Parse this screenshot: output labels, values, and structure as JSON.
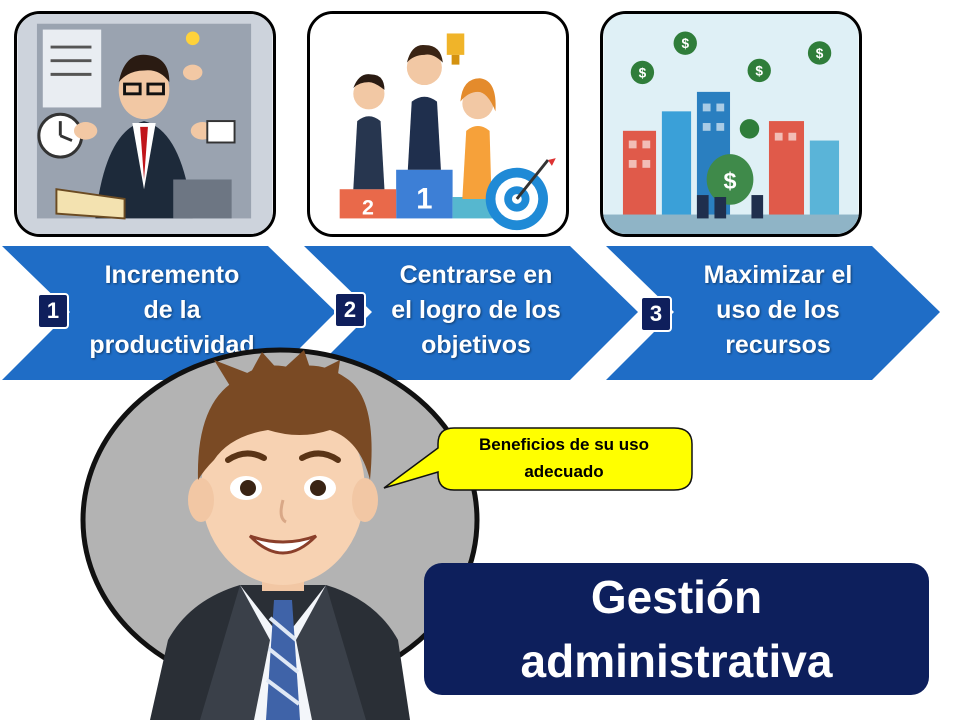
{
  "steps": [
    {
      "number": "1",
      "text": [
        "Incremento",
        "de la",
        "productividad"
      ],
      "image": "busy-businessman-multitasking"
    },
    {
      "number": "2",
      "text": [
        "Centrarse en",
        "el logro de los",
        "objetivos"
      ],
      "image": "winners-podium-with-target"
    },
    {
      "number": "3",
      "text": [
        "Maximizar el",
        "uso de los",
        "recursos"
      ],
      "image": "city-money-resources"
    }
  ],
  "bubble": {
    "lines": [
      "Beneficios de su uso",
      "adecuado"
    ]
  },
  "title": {
    "lines": [
      "Gestión",
      "administrativa"
    ]
  },
  "colors": {
    "chevron": "#1f6dc6",
    "number_badge": "#0f1f5c",
    "title_box": "#0d1f5c",
    "bubble": "#ffff00",
    "circle": "#b3b3b3"
  }
}
